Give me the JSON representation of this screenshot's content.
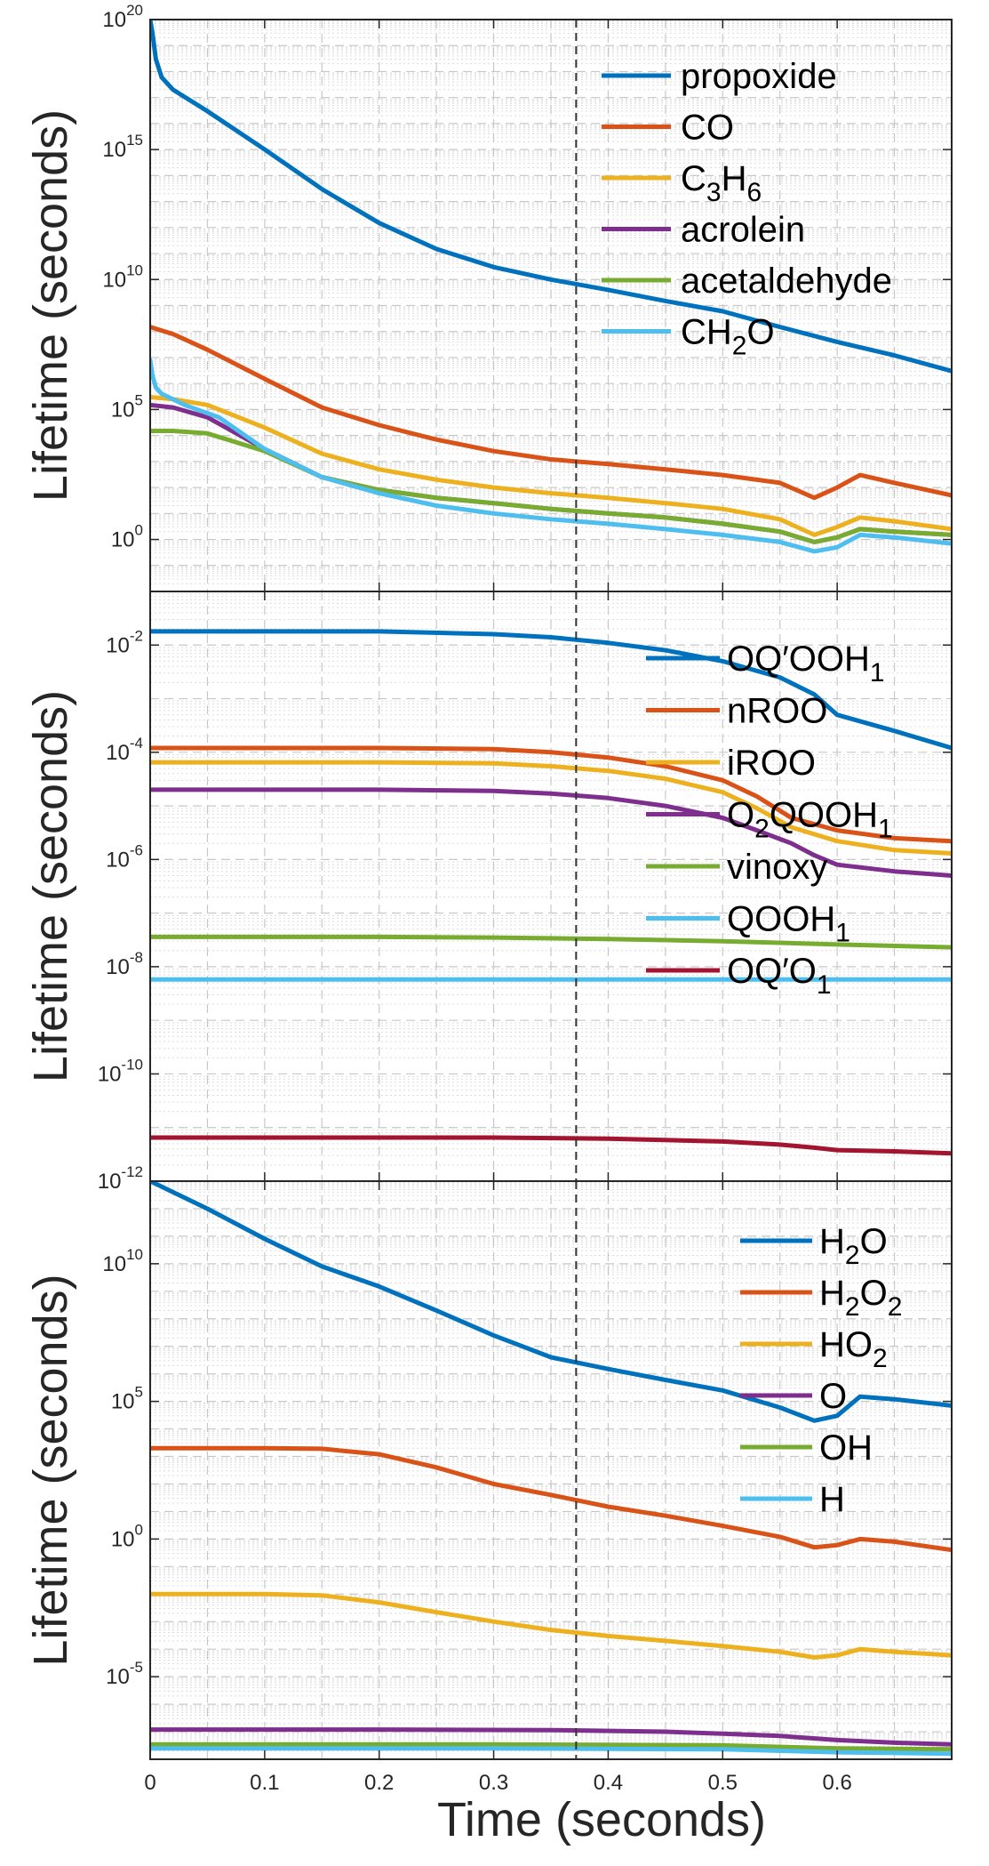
{
  "figure": {
    "xlabel": "Time (seconds)",
    "xticks": [
      "0",
      "0.1",
      "0.2",
      "0.3",
      "0.4",
      "0.5",
      "0.6"
    ],
    "marker_time": 0.372
  },
  "chart_data": [
    {
      "type": "line",
      "yscale": "log",
      "ylabel": "Lifetime (seconds)",
      "xlim": [
        0,
        0.7
      ],
      "ylim": [
        0.01,
        1e+20
      ],
      "yticks": [
        {
          "exp": 0,
          "label": "10",
          "sup": "0"
        },
        {
          "exp": 5,
          "label": "10",
          "sup": "5"
        },
        {
          "exp": 10,
          "label": "10",
          "sup": "10"
        },
        {
          "exp": 15,
          "label": "10",
          "sup": "15"
        },
        {
          "exp": 20,
          "label": "10",
          "sup": "20"
        }
      ],
      "grid": true,
      "legend_position": "top-right",
      "series": [
        {
          "name": "propoxide",
          "name_base": "propoxide",
          "name_sub": [],
          "color": "#0072BD",
          "x": [
            0,
            0.002,
            0.005,
            0.01,
            0.02,
            0.05,
            0.1,
            0.15,
            0.2,
            0.25,
            0.3,
            0.35,
            0.4,
            0.45,
            0.5,
            0.55,
            0.6,
            0.65,
            0.7
          ],
          "y": [
            1e+20,
            3e+19,
            3e+18,
            6e+17,
            2e+17,
            3e+16,
            1000000000000000.0,
            30000000000000.0,
            1500000000000.0,
            150000000000.0,
            30000000000.0,
            10000000000.0,
            4000000000.0,
            1500000000.0,
            600000000.0,
            150000000.0,
            40000000.0,
            12000000.0,
            3000000.0
          ]
        },
        {
          "name": "CO",
          "name_base": "CO",
          "name_sub": [],
          "color": "#D95319",
          "x": [
            0,
            0.02,
            0.05,
            0.1,
            0.15,
            0.2,
            0.25,
            0.3,
            0.35,
            0.4,
            0.45,
            0.5,
            0.55,
            0.58,
            0.6,
            0.62,
            0.65,
            0.7
          ],
          "y": [
            150000000.0,
            80000000.0,
            20000000.0,
            1500000.0,
            120000.0,
            25000.0,
            7000,
            2500,
            1200,
            800,
            500,
            300,
            150,
            40,
            100,
            300,
            150,
            50
          ]
        },
        {
          "name": "C3H6",
          "name_base": "C",
          "name_sub": [
            "3",
            "H",
            "6"
          ],
          "color": "#EDB120",
          "x": [
            0,
            0.02,
            0.05,
            0.1,
            0.15,
            0.2,
            0.25,
            0.3,
            0.35,
            0.4,
            0.45,
            0.5,
            0.55,
            0.58,
            0.6,
            0.62,
            0.65,
            0.7
          ],
          "y": [
            300000.0,
            250000.0,
            150000.0,
            20000.0,
            2000,
            500,
            200,
            100,
            60,
            40,
            25,
            15,
            6,
            1.5,
            3,
            7,
            5,
            2.5
          ]
        },
        {
          "name": "acrolein",
          "name_base": "acrolein",
          "name_sub": [],
          "color": "#7E2F8E",
          "x": [
            0,
            0.02,
            0.05,
            0.1,
            0.15,
            0.2,
            0.25,
            0.3,
            0.35,
            0.4,
            0.45,
            0.5,
            0.55,
            0.58,
            0.6,
            0.62,
            0.65,
            0.7
          ],
          "y": [
            150000.0,
            120000.0,
            50000.0,
            3000,
            250,
            80,
            40,
            25,
            15,
            10,
            7,
            4,
            2,
            0.8,
            1.2,
            2.5,
            2,
            1.5
          ]
        },
        {
          "name": "acetaldehyde",
          "name_base": "acetaldehyde",
          "name_sub": [],
          "color": "#77AC30",
          "x": [
            0,
            0.02,
            0.05,
            0.1,
            0.15,
            0.2,
            0.25,
            0.3,
            0.35,
            0.4,
            0.45,
            0.5,
            0.55,
            0.58,
            0.6,
            0.62,
            0.65,
            0.7
          ],
          "y": [
            15000.0,
            15000.0,
            12000.0,
            2500,
            250,
            80,
            40,
            25,
            15,
            10,
            7,
            4,
            2,
            0.8,
            1.2,
            2.5,
            2,
            1.5
          ]
        },
        {
          "name": "CH2O",
          "name_base": "CH",
          "name_sub": [
            "2",
            "O"
          ],
          "color": "#4DBEEE",
          "x": [
            0,
            0.002,
            0.005,
            0.01,
            0.03,
            0.06,
            0.1,
            0.15,
            0.2,
            0.25,
            0.3,
            0.35,
            0.4,
            0.45,
            0.5,
            0.55,
            0.58,
            0.6,
            0.62,
            0.65,
            0.7
          ],
          "y": [
            8000000.0,
            2000000.0,
            700000.0,
            400000.0,
            150000.0,
            50000.0,
            3000,
            250,
            60,
            20,
            10,
            6,
            4,
            2.5,
            1.5,
            0.8,
            0.35,
            0.5,
            1.5,
            1.2,
            0.7
          ]
        }
      ]
    },
    {
      "type": "line",
      "yscale": "log",
      "ylabel": "Lifetime (seconds)",
      "xlim": [
        0,
        0.7
      ],
      "ylim": [
        1e-12,
        0.1
      ],
      "yticks": [
        {
          "exp": -12,
          "label": "10",
          "sup": "-12"
        },
        {
          "exp": -10,
          "label": "10",
          "sup": "-10"
        },
        {
          "exp": -8,
          "label": "10",
          "sup": "-8"
        },
        {
          "exp": -6,
          "label": "10",
          "sup": "-6"
        },
        {
          "exp": -4,
          "label": "10",
          "sup": "-4"
        },
        {
          "exp": -2,
          "label": "10",
          "sup": "-2"
        }
      ],
      "grid": true,
      "legend_position": "top-right",
      "series": [
        {
          "name": "OQ'OOH1",
          "name_base": "OQ′OOH",
          "name_sub": [
            "1"
          ],
          "color": "#0072BD",
          "x": [
            0,
            0.1,
            0.2,
            0.3,
            0.35,
            0.4,
            0.45,
            0.5,
            0.55,
            0.58,
            0.6,
            0.65,
            0.7
          ],
          "y": [
            0.018,
            0.018,
            0.018,
            0.016,
            0.014,
            0.011,
            0.008,
            0.005,
            0.0025,
            0.0012,
            0.0005,
            0.00025,
            0.00012
          ]
        },
        {
          "name": "nROO",
          "name_base": "nROO",
          "name_sub": [],
          "color": "#D95319",
          "x": [
            0,
            0.2,
            0.3,
            0.35,
            0.4,
            0.45,
            0.5,
            0.53,
            0.56,
            0.6,
            0.65,
            0.7
          ],
          "y": [
            0.00012,
            0.00012,
            0.000115,
            0.0001,
            8e-05,
            5.5e-05,
            3e-05,
            1.5e-05,
            6e-06,
            3.5e-06,
            2.5e-06,
            2.2e-06
          ]
        },
        {
          "name": "iROO",
          "name_base": "iROO",
          "name_sub": [],
          "color": "#EDB120",
          "x": [
            0,
            0.2,
            0.3,
            0.35,
            0.4,
            0.45,
            0.5,
            0.53,
            0.56,
            0.6,
            0.65,
            0.7
          ],
          "y": [
            6.5e-05,
            6.5e-05,
            6.2e-05,
            5.5e-05,
            4.5e-05,
            3.2e-05,
            1.8e-05,
            9e-06,
            4e-06,
            2.2e-06,
            1.5e-06,
            1.3e-06
          ]
        },
        {
          "name": "O2QOOH1",
          "name_base": "O",
          "name_sub": [
            "2",
            "QOOH",
            "1"
          ],
          "color": "#7E2F8E",
          "x": [
            0,
            0.2,
            0.3,
            0.35,
            0.4,
            0.45,
            0.5,
            0.53,
            0.56,
            0.58,
            0.6,
            0.65,
            0.7
          ],
          "y": [
            2e-05,
            2e-05,
            1.9e-05,
            1.7e-05,
            1.4e-05,
            1e-05,
            6e-06,
            3.5e-06,
            2e-06,
            1.2e-06,
            8e-07,
            6e-07,
            5e-07
          ]
        },
        {
          "name": "vinoxy",
          "name_base": "vinoxy",
          "name_sub": [],
          "color": "#77AC30",
          "x": [
            0,
            0.2,
            0.3,
            0.4,
            0.5,
            0.6,
            0.7
          ],
          "y": [
            3.6e-08,
            3.6e-08,
            3.5e-08,
            3.3e-08,
            3e-08,
            2.6e-08,
            2.3e-08
          ]
        },
        {
          "name": "QOOH1",
          "name_base": "QOOH",
          "name_sub": [
            "1"
          ],
          "color": "#4DBEEE",
          "x": [
            0,
            0.7
          ],
          "y": [
            5.8e-09,
            5.8e-09
          ]
        },
        {
          "name": "OQ'O1",
          "name_base": "OQ′O",
          "name_sub": [
            "1"
          ],
          "color": "#A2142F",
          "x": [
            0,
            0.3,
            0.4,
            0.5,
            0.55,
            0.58,
            0.6,
            0.65,
            0.7
          ],
          "y": [
            6.5e-12,
            6.5e-12,
            6.2e-12,
            5.5e-12,
            4.8e-12,
            4.2e-12,
            3.8e-12,
            3.6e-12,
            3.3e-12
          ]
        }
      ]
    },
    {
      "type": "line",
      "yscale": "log",
      "ylabel": "Lifetime (seconds)",
      "xlim": [
        0,
        0.7
      ],
      "ylim": [
        1e-08,
        10000000000000.0
      ],
      "yticks": [
        {
          "exp": -5,
          "label": "10",
          "sup": "-5"
        },
        {
          "exp": 0,
          "label": "10",
          "sup": "0"
        },
        {
          "exp": 5,
          "label": "10",
          "sup": "5"
        },
        {
          "exp": 10,
          "label": "10",
          "sup": "10"
        }
      ],
      "grid": true,
      "legend_position": "top-right",
      "series": [
        {
          "name": "H2O",
          "name_base": "H",
          "name_sub": [
            "2",
            "O"
          ],
          "color": "#0072BD",
          "x": [
            0,
            0.05,
            0.1,
            0.15,
            0.2,
            0.25,
            0.3,
            0.35,
            0.4,
            0.45,
            0.5,
            0.55,
            0.58,
            0.6,
            0.62,
            0.65,
            0.7
          ],
          "y": [
            10000000000000.0,
            1000000000000.0,
            80000000000.0,
            8000000000.0,
            1500000000.0,
            200000000.0,
            25000000.0,
            4000000.0,
            1500000.0,
            600000.0,
            250000.0,
            60000.0,
            20000.0,
            30000.0,
            150000.0,
            120000.0,
            70000.0
          ]
        },
        {
          "name": "H2O2",
          "name_base": "H",
          "name_sub": [
            "2",
            "O",
            "2"
          ],
          "color": "#D95319",
          "x": [
            0,
            0.1,
            0.15,
            0.2,
            0.25,
            0.3,
            0.35,
            0.4,
            0.45,
            0.5,
            0.55,
            0.58,
            0.6,
            0.62,
            0.65,
            0.7
          ],
          "y": [
            2000,
            2000,
            1900,
            1200,
            400,
            100,
            40,
            15,
            7,
            3,
            1.2,
            0.5,
            0.6,
            1,
            0.8,
            0.4
          ]
        },
        {
          "name": "HO2",
          "name_base": "HO",
          "name_sub": [
            "2"
          ],
          "color": "#EDB120",
          "x": [
            0,
            0.1,
            0.15,
            0.2,
            0.25,
            0.3,
            0.35,
            0.4,
            0.45,
            0.5,
            0.55,
            0.58,
            0.6,
            0.62,
            0.65,
            0.7
          ],
          "y": [
            0.01,
            0.01,
            0.009,
            0.005,
            0.0022,
            0.001,
            0.0005,
            0.0003,
            0.0002,
            0.00013,
            8e-05,
            5e-05,
            6e-05,
            0.0001,
            8e-05,
            6e-05
          ]
        },
        {
          "name": "O",
          "name_base": "O",
          "name_sub": [],
          "color": "#7E2F8E",
          "x": [
            0,
            0.2,
            0.35,
            0.45,
            0.5,
            0.55,
            0.6,
            0.65,
            0.7
          ],
          "y": [
            1.2e-07,
            1.2e-07,
            1.15e-07,
            1e-07,
            8.5e-08,
            7e-08,
            5e-08,
            4e-08,
            3.5e-08
          ]
        },
        {
          "name": "OH",
          "name_base": "OH",
          "name_sub": [],
          "color": "#77AC30",
          "x": [
            0,
            0.3,
            0.5,
            0.6,
            0.7
          ],
          "y": [
            3.5e-08,
            3.5e-08,
            3.2e-08,
            2.5e-08,
            2.3e-08
          ]
        },
        {
          "name": "H",
          "name_base": "H",
          "name_sub": [],
          "color": "#4DBEEE",
          "x": [
            0,
            0.3,
            0.5,
            0.6,
            0.7
          ],
          "y": [
            2.5e-08,
            2.5e-08,
            2.3e-08,
            1.8e-08,
            1.6e-08
          ]
        }
      ]
    }
  ]
}
